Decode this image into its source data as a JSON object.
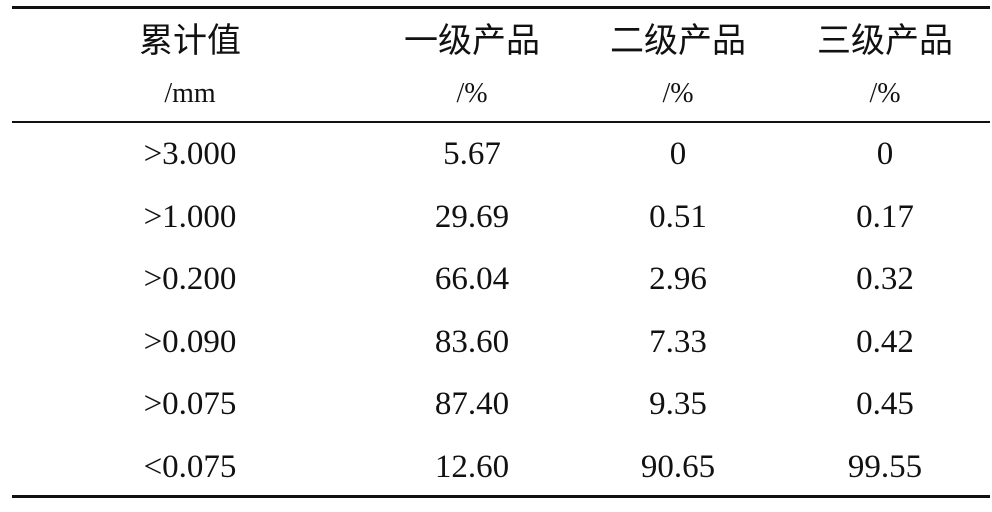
{
  "table": {
    "headers": [
      {
        "name": "累计值",
        "unit": "/mm"
      },
      {
        "name": "一级产品",
        "unit": "/%"
      },
      {
        "name": "二级产品",
        "unit": "/%"
      },
      {
        "name": "三级产品",
        "unit": "/%"
      }
    ],
    "rows": [
      [
        ">3.000",
        "5.67",
        "0",
        "0"
      ],
      [
        ">1.000",
        "29.69",
        "0.51",
        "0.17"
      ],
      [
        ">0.200",
        "66.04",
        "2.96",
        "0.32"
      ],
      [
        ">0.090",
        "83.60",
        "7.33",
        "0.42"
      ],
      [
        ">0.075",
        "87.40",
        "9.35",
        "0.45"
      ],
      [
        "<0.075",
        "12.60",
        "90.65",
        "99.55"
      ]
    ]
  }
}
